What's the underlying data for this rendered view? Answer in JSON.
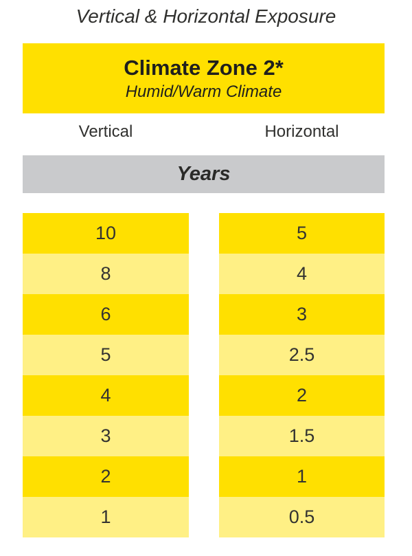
{
  "page_title": "Vertical & Horizontal Exposure",
  "header": {
    "title": "Climate Zone 2*",
    "subtitle": "Humid/Warm Climate"
  },
  "column_labels": {
    "left": "Vertical",
    "right": "Horizontal"
  },
  "unit_band": {
    "label": "Years"
  },
  "chart_data": {
    "type": "table",
    "title": "Vertical & Horizontal Exposure",
    "group_header": "Climate Zone 2*",
    "group_subheader": "Humid/Warm Climate",
    "unit": "Years",
    "columns": [
      "Vertical",
      "Horizontal"
    ],
    "rows": [
      {
        "vertical": "10",
        "horizontal": "5"
      },
      {
        "vertical": "8",
        "horizontal": "4"
      },
      {
        "vertical": "6",
        "horizontal": "3"
      },
      {
        "vertical": "5",
        "horizontal": "2.5"
      },
      {
        "vertical": "4",
        "horizontal": "2"
      },
      {
        "vertical": "3",
        "horizontal": "1.5"
      },
      {
        "vertical": "2",
        "horizontal": "1"
      },
      {
        "vertical": "1",
        "horizontal": "0.5"
      }
    ],
    "layout_hints": {
      "row_colors_alternate": true,
      "odd_row_color": "#ffe000",
      "even_row_color": "#fff085",
      "unit_band_color": "#c9cacc"
    }
  },
  "colors": {
    "bright_yellow": "#ffe000",
    "light_yellow": "#fff085",
    "band_gray": "#c9cacc",
    "text_dark": "#30302e"
  }
}
